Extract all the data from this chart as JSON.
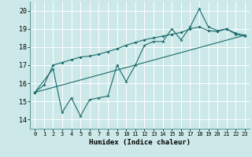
{
  "xlabel": "Humidex (Indice chaleur)",
  "xlim": [
    -0.5,
    23.5
  ],
  "ylim": [
    13.5,
    20.5
  ],
  "xticks": [
    0,
    1,
    2,
    3,
    4,
    5,
    6,
    7,
    8,
    9,
    10,
    11,
    12,
    13,
    14,
    15,
    16,
    17,
    18,
    19,
    20,
    21,
    22,
    23
  ],
  "yticks": [
    14,
    15,
    16,
    17,
    18,
    19,
    20
  ],
  "bg_color": "#cce8e8",
  "line_color": "#1a6b6b",
  "line1_x": [
    0,
    2,
    3,
    4,
    5,
    6,
    7,
    8,
    9,
    10,
    11,
    12,
    13,
    14,
    15,
    16,
    17,
    18,
    19,
    20,
    21,
    22,
    23
  ],
  "line1_y": [
    15.5,
    16.8,
    14.4,
    15.2,
    14.2,
    15.1,
    15.2,
    15.3,
    17.0,
    16.1,
    17.0,
    18.1,
    18.3,
    18.3,
    19.0,
    18.4,
    19.1,
    20.1,
    19.1,
    18.9,
    19.0,
    18.7,
    18.6
  ],
  "line2_x": [
    0,
    1,
    2,
    3,
    4,
    5,
    6,
    7,
    8,
    9,
    10,
    11,
    12,
    13,
    14,
    15,
    16,
    17,
    18,
    19,
    20,
    21,
    22,
    23
  ],
  "line2_y": [
    15.5,
    15.9,
    17.0,
    17.15,
    17.3,
    17.45,
    17.5,
    17.6,
    17.75,
    17.9,
    18.1,
    18.25,
    18.4,
    18.5,
    18.6,
    18.7,
    18.8,
    19.0,
    19.1,
    18.9,
    18.85,
    19.0,
    18.75,
    18.65
  ],
  "line3_x": [
    0,
    23
  ],
  "line3_y": [
    15.5,
    18.65
  ]
}
